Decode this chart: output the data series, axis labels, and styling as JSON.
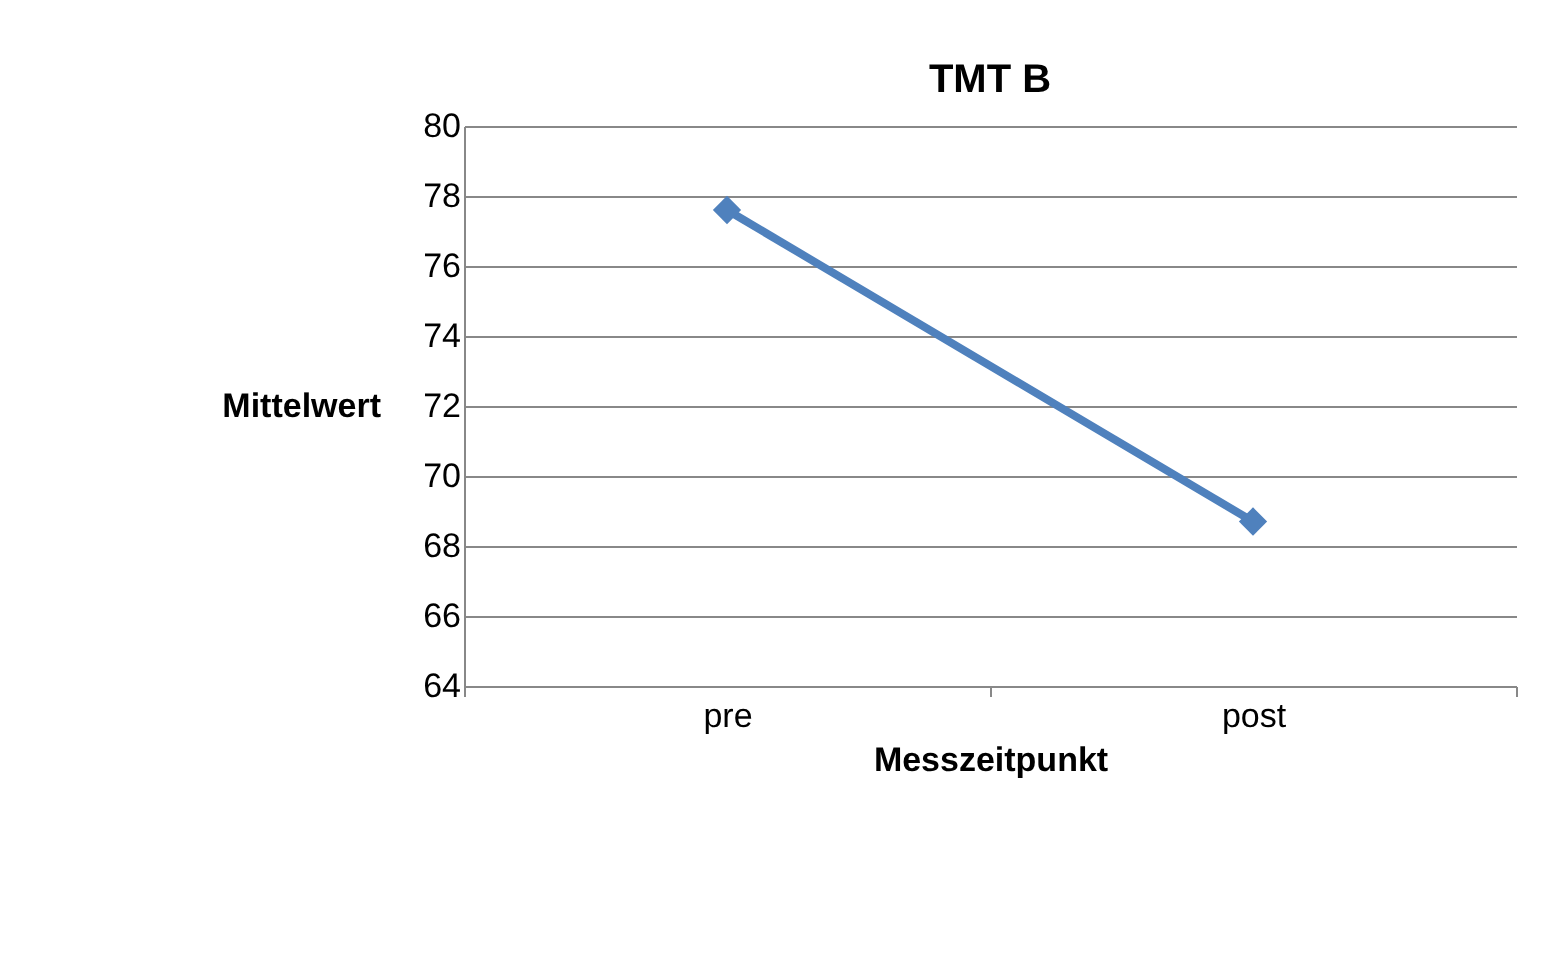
{
  "chart_data": {
    "type": "line",
    "title": "TMT B",
    "xlabel": "Messzeitpunkt",
    "ylabel": "Mittelwert",
    "categories": [
      "pre",
      "post"
    ],
    "series": [
      {
        "color": "#4f81bd",
        "values": [
          77.6,
          68.7
        ]
      }
    ],
    "ylim": [
      64,
      80
    ],
    "yticks": [
      64,
      66,
      68,
      70,
      72,
      74,
      76,
      78,
      80
    ],
    "grid": "y",
    "marker": "diamond",
    "line_style": "solid",
    "legend": false
  }
}
